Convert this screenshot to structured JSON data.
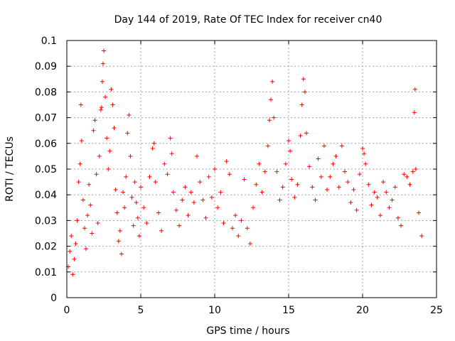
{
  "chart_data": {
    "type": "scatter",
    "title": "Day 144 of 2019, Rate Of TEC Index for receiver cn40",
    "xlabel": "GPS time / hours",
    "ylabel": "ROTI / TECUs",
    "xlim": [
      0,
      25
    ],
    "ylim": [
      0,
      0.1
    ],
    "x_ticks": [
      "0",
      "5",
      "10",
      "15",
      "20",
      "25"
    ],
    "y_ticks": [
      "0",
      "0.01",
      "0.02",
      "0.03",
      "0.04",
      "0.05",
      "0.06",
      "0.07",
      "0.08",
      "0.09",
      "0.1"
    ],
    "grid": true,
    "marker": "+",
    "color": "#ff0000",
    "series": [
      {
        "name": "",
        "points": [
          [
            0.1,
            0.012
          ],
          [
            0.2,
            0.018
          ],
          [
            0.3,
            0.024
          ],
          [
            0.4,
            0.009
          ],
          [
            0.5,
            0.015
          ],
          [
            0.6,
            0.021
          ],
          [
            0.7,
            0.03
          ],
          [
            0.8,
            0.045
          ],
          [
            0.9,
            0.052
          ],
          [
            0.95,
            0.075
          ],
          [
            1.0,
            0.061
          ],
          [
            1.1,
            0.038
          ],
          [
            1.2,
            0.027
          ],
          [
            1.3,
            0.019
          ],
          [
            1.4,
            0.032
          ],
          [
            1.5,
            0.044
          ],
          [
            1.6,
            0.036
          ],
          [
            1.7,
            0.025
          ],
          [
            1.8,
            0.065
          ],
          [
            1.9,
            0.069
          ],
          [
            2.0,
            0.048
          ],
          [
            2.1,
            0.029
          ],
          [
            2.2,
            0.055
          ],
          [
            2.3,
            0.073
          ],
          [
            2.35,
            0.074
          ],
          [
            2.4,
            0.084
          ],
          [
            2.45,
            0.091
          ],
          [
            2.5,
            0.096
          ],
          [
            2.6,
            0.078
          ],
          [
            2.7,
            0.062
          ],
          [
            2.8,
            0.05
          ],
          [
            2.9,
            0.057
          ],
          [
            3.0,
            0.081
          ],
          [
            3.1,
            0.075
          ],
          [
            3.2,
            0.066
          ],
          [
            3.3,
            0.042
          ],
          [
            3.4,
            0.033
          ],
          [
            3.5,
            0.022
          ],
          [
            3.6,
            0.026
          ],
          [
            3.7,
            0.017
          ],
          [
            3.8,
            0.041
          ],
          [
            3.9,
            0.035
          ],
          [
            4.0,
            0.047
          ],
          [
            4.1,
            0.064
          ],
          [
            4.2,
            0.071
          ],
          [
            4.3,
            0.055
          ],
          [
            4.4,
            0.039
          ],
          [
            4.5,
            0.028
          ],
          [
            4.6,
            0.045
          ],
          [
            4.7,
            0.037
          ],
          [
            4.8,
            0.031
          ],
          [
            4.9,
            0.024
          ],
          [
            5.0,
            0.043
          ],
          [
            5.2,
            0.035
          ],
          [
            5.4,
            0.029
          ],
          [
            5.6,
            0.047
          ],
          [
            5.8,
            0.058
          ],
          [
            5.9,
            0.06
          ],
          [
            6.0,
            0.045
          ],
          [
            6.2,
            0.033
          ],
          [
            6.4,
            0.026
          ],
          [
            6.6,
            0.052
          ],
          [
            6.8,
            0.048
          ],
          [
            7.0,
            0.062
          ],
          [
            7.1,
            0.056
          ],
          [
            7.2,
            0.041
          ],
          [
            7.4,
            0.034
          ],
          [
            7.6,
            0.028
          ],
          [
            7.8,
            0.038
          ],
          [
            8.0,
            0.043
          ],
          [
            8.2,
            0.032
          ],
          [
            8.4,
            0.041
          ],
          [
            8.6,
            0.037
          ],
          [
            8.8,
            0.055
          ],
          [
            9.0,
            0.045
          ],
          [
            9.2,
            0.038
          ],
          [
            9.4,
            0.031
          ],
          [
            9.6,
            0.047
          ],
          [
            9.8,
            0.039
          ],
          [
            10.0,
            0.05
          ],
          [
            10.2,
            0.035
          ],
          [
            10.4,
            0.041
          ],
          [
            10.6,
            0.029
          ],
          [
            10.8,
            0.053
          ],
          [
            11.0,
            0.048
          ],
          [
            11.2,
            0.027
          ],
          [
            11.4,
            0.032
          ],
          [
            11.6,
            0.024
          ],
          [
            11.8,
            0.03
          ],
          [
            12.0,
            0.046
          ],
          [
            12.2,
            0.027
          ],
          [
            12.4,
            0.021
          ],
          [
            12.6,
            0.035
          ],
          [
            12.8,
            0.044
          ],
          [
            13.0,
            0.052
          ],
          [
            13.2,
            0.041
          ],
          [
            13.4,
            0.049
          ],
          [
            13.6,
            0.059
          ],
          [
            13.7,
            0.069
          ],
          [
            13.8,
            0.077
          ],
          [
            13.9,
            0.084
          ],
          [
            14.0,
            0.07
          ],
          [
            14.2,
            0.049
          ],
          [
            14.4,
            0.038
          ],
          [
            14.6,
            0.043
          ],
          [
            14.8,
            0.052
          ],
          [
            15.0,
            0.061
          ],
          [
            15.1,
            0.057
          ],
          [
            15.2,
            0.046
          ],
          [
            15.4,
            0.039
          ],
          [
            15.6,
            0.044
          ],
          [
            15.8,
            0.063
          ],
          [
            15.9,
            0.075
          ],
          [
            16.0,
            0.085
          ],
          [
            16.1,
            0.08
          ],
          [
            16.2,
            0.064
          ],
          [
            16.4,
            0.051
          ],
          [
            16.6,
            0.043
          ],
          [
            16.8,
            0.038
          ],
          [
            17.0,
            0.054
          ],
          [
            17.2,
            0.047
          ],
          [
            17.4,
            0.059
          ],
          [
            17.6,
            0.042
          ],
          [
            17.8,
            0.047
          ],
          [
            18.0,
            0.052
          ],
          [
            18.2,
            0.055
          ],
          [
            18.4,
            0.043
          ],
          [
            18.6,
            0.059
          ],
          [
            18.8,
            0.049
          ],
          [
            19.0,
            0.045
          ],
          [
            19.2,
            0.037
          ],
          [
            19.4,
            0.042
          ],
          [
            19.6,
            0.034
          ],
          [
            19.8,
            0.048
          ],
          [
            20.0,
            0.058
          ],
          [
            20.1,
            0.056
          ],
          [
            20.2,
            0.052
          ],
          [
            20.4,
            0.044
          ],
          [
            20.6,
            0.036
          ],
          [
            20.8,
            0.041
          ],
          [
            21.0,
            0.039
          ],
          [
            21.2,
            0.032
          ],
          [
            21.4,
            0.045
          ],
          [
            21.6,
            0.041
          ],
          [
            21.8,
            0.035
          ],
          [
            22.0,
            0.038
          ],
          [
            22.2,
            0.043
          ],
          [
            22.4,
            0.031
          ],
          [
            22.6,
            0.028
          ],
          [
            22.8,
            0.048
          ],
          [
            23.0,
            0.047
          ],
          [
            23.2,
            0.044
          ],
          [
            23.4,
            0.049
          ],
          [
            23.5,
            0.072
          ],
          [
            23.55,
            0.081
          ],
          [
            23.6,
            0.05
          ],
          [
            23.8,
            0.033
          ],
          [
            24.0,
            0.024
          ]
        ]
      }
    ]
  }
}
